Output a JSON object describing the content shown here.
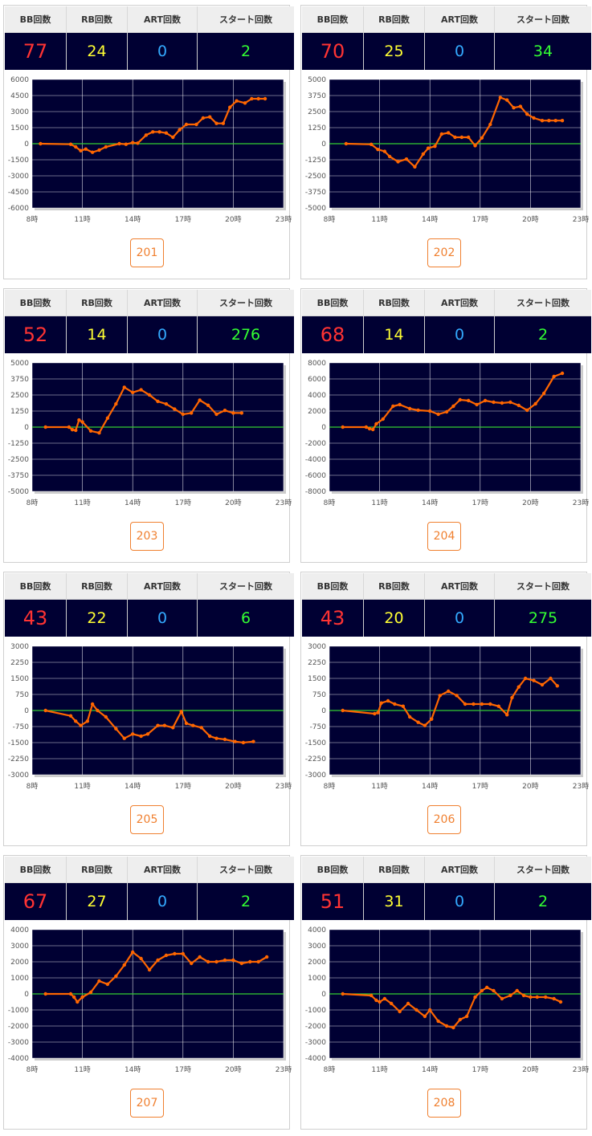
{
  "headers": {
    "bb": "BB回数",
    "rb": "RB回数",
    "art": "ART回数",
    "start": "スタート回数"
  },
  "colors": {
    "bb": "#ff3333",
    "rb": "#ffff33",
    "art": "#33aaff",
    "start": "#33ff33",
    "plot_bg": "#000033",
    "line": "#ff6600",
    "zero_line": "#33cc33",
    "button": "#f08030"
  },
  "machines": [
    {
      "id": "201",
      "bb": "77",
      "rb": "24",
      "art": "0",
      "start": "2"
    },
    {
      "id": "202",
      "bb": "70",
      "rb": "25",
      "art": "0",
      "start": "34"
    },
    {
      "id": "203",
      "bb": "52",
      "rb": "14",
      "art": "0",
      "start": "276"
    },
    {
      "id": "204",
      "bb": "68",
      "rb": "14",
      "art": "0",
      "start": "2"
    },
    {
      "id": "205",
      "bb": "43",
      "rb": "22",
      "art": "0",
      "start": "6"
    },
    {
      "id": "206",
      "bb": "43",
      "rb": "20",
      "art": "0",
      "start": "275"
    },
    {
      "id": "207",
      "bb": "67",
      "rb": "27",
      "art": "0",
      "start": "2"
    },
    {
      "id": "208",
      "bb": "51",
      "rb": "31",
      "art": "0",
      "start": "2"
    }
  ],
  "chart_data": [
    {
      "type": "line",
      "title": "",
      "series": [
        {
          "name": "",
          "x": [
            8.5,
            10.3,
            10.6,
            10.9,
            11.2,
            11.6,
            12,
            12.4,
            13.2,
            13.6,
            14,
            14.3,
            14.8,
            15.2,
            15.6,
            16,
            16.4,
            16.8,
            17.2,
            17.8,
            18.2,
            18.6,
            19,
            19.4,
            19.8,
            20.2,
            20.7,
            21.1,
            21.5,
            21.9
          ],
          "y": [
            0,
            -50,
            -300,
            -650,
            -500,
            -800,
            -600,
            -300,
            0,
            -50,
            100,
            50,
            800,
            1100,
            1100,
            1000,
            600,
            1300,
            1800,
            1800,
            2400,
            2500,
            1900,
            1900,
            3400,
            4000,
            3800,
            4200,
            4200,
            4200
          ]
        }
      ],
      "x_ticks": [
        "8時",
        "11時",
        "14時",
        "17時",
        "20時",
        "23時"
      ],
      "y_ticks": [
        "6000",
        "4500",
        "3000",
        "1500",
        "0",
        "-1500",
        "-3000",
        "-4500",
        "-6000"
      ],
      "xlim": [
        8,
        23
      ],
      "ylim": [
        -6000,
        6000
      ]
    },
    {
      "type": "line",
      "title": "",
      "series": [
        {
          "name": "",
          "x": [
            9,
            10.5,
            10.9,
            11.3,
            11.6,
            12.1,
            12.6,
            13.1,
            13.6,
            13.9,
            14.3,
            14.7,
            15.1,
            15.5,
            15.9,
            16.3,
            16.7,
            17.1,
            17.6,
            18.2,
            18.6,
            19,
            19.4,
            19.8,
            20.2,
            20.7,
            21.1,
            21.5,
            21.9
          ],
          "y": [
            0,
            -50,
            -450,
            -600,
            -1000,
            -1400,
            -1200,
            -1800,
            -800,
            -350,
            -200,
            750,
            850,
            500,
            500,
            500,
            -150,
            450,
            1500,
            3600,
            3400,
            2800,
            2900,
            2300,
            2000,
            1800,
            1800,
            1800,
            1800
          ]
        }
      ],
      "x_ticks": [
        "8時",
        "11時",
        "14時",
        "17時",
        "20時",
        "23時"
      ],
      "y_ticks": [
        "5000",
        "3750",
        "2500",
        "1250",
        "0",
        "-1250",
        "-2500",
        "-3750",
        "-5000"
      ],
      "xlim": [
        8,
        23
      ],
      "ylim": [
        -5000,
        5000
      ]
    },
    {
      "type": "line",
      "title": "",
      "series": [
        {
          "name": "",
          "x": [
            8.8,
            10.2,
            10.4,
            10.6,
            10.8,
            11,
            11.5,
            12,
            12.5,
            13,
            13.5,
            14,
            14.5,
            15,
            15.5,
            16,
            16.5,
            17,
            17.5,
            18,
            18.5,
            19,
            19.5,
            20,
            20.5
          ],
          "y": [
            0,
            0,
            -200,
            -250,
            550,
            400,
            -300,
            -450,
            700,
            1800,
            3100,
            2700,
            2900,
            2500,
            2000,
            1800,
            1400,
            1000,
            1100,
            2100,
            1700,
            1000,
            1300,
            1100,
            1100
          ]
        }
      ],
      "x_ticks": [
        "8時",
        "11時",
        "14時",
        "17時",
        "20時",
        "23時"
      ],
      "y_ticks": [
        "5000",
        "3750",
        "2500",
        "1250",
        "0",
        "-1250",
        "-2500",
        "-3750",
        "-5000"
      ],
      "xlim": [
        8,
        23
      ],
      "ylim": [
        -5000,
        5000
      ]
    },
    {
      "type": "line",
      "title": "",
      "series": [
        {
          "name": "",
          "x": [
            8.8,
            10.2,
            10.4,
            10.6,
            10.8,
            11.2,
            11.8,
            12.2,
            12.8,
            13.3,
            14,
            14.5,
            15,
            15.4,
            15.8,
            16.3,
            16.8,
            17.3,
            17.8,
            18.3,
            18.8,
            19.3,
            19.8,
            20.3,
            20.8,
            21.4,
            21.9
          ],
          "y": [
            0,
            0,
            -200,
            -300,
            400,
            1000,
            2600,
            2800,
            2300,
            2100,
            2000,
            1600,
            1900,
            2600,
            3400,
            3300,
            2800,
            3300,
            3100,
            3000,
            3100,
            2700,
            2100,
            2900,
            4200,
            6300,
            6700
          ]
        }
      ],
      "x_ticks": [
        "8時",
        "11時",
        "14時",
        "17時",
        "20時",
        "23時"
      ],
      "y_ticks": [
        "8000",
        "6000",
        "4000",
        "2000",
        "0",
        "-2000",
        "-4000",
        "-6000",
        "-8000"
      ],
      "xlim": [
        8,
        23
      ],
      "ylim": [
        -8000,
        8000
      ]
    },
    {
      "type": "line",
      "title": "",
      "series": [
        {
          "name": "",
          "x": [
            8.8,
            10.3,
            10.6,
            10.9,
            11.3,
            11.6,
            11.9,
            12.4,
            13,
            13.5,
            14,
            14.5,
            14.9,
            15.5,
            15.9,
            16.4,
            16.9,
            17.2,
            17.6,
            18.1,
            18.6,
            19,
            19.5,
            20.1,
            20.6,
            21.2
          ],
          "y": [
            0,
            -250,
            -500,
            -700,
            -500,
            300,
            0,
            -300,
            -850,
            -1300,
            -1100,
            -1200,
            -1100,
            -700,
            -700,
            -800,
            -50,
            -600,
            -700,
            -800,
            -1200,
            -1300,
            -1350,
            -1450,
            -1500,
            -1450
          ]
        }
      ],
      "x_ticks": [
        "8時",
        "11時",
        "14時",
        "17時",
        "20時",
        "23時"
      ],
      "y_ticks": [
        "3000",
        "2250",
        "1500",
        "750",
        "0",
        "-750",
        "-1500",
        "-2250",
        "-3000"
      ],
      "xlim": [
        8,
        23
      ],
      "ylim": [
        -3000,
        3000
      ]
    },
    {
      "type": "line",
      "title": "",
      "series": [
        {
          "name": "",
          "x": [
            8.8,
            10.7,
            10.9,
            11.1,
            11.5,
            11.9,
            12.4,
            12.8,
            13.3,
            13.7,
            14.1,
            14.6,
            15.1,
            15.6,
            16.1,
            16.6,
            17.1,
            17.6,
            18.1,
            18.6,
            18.9,
            19.3,
            19.7,
            20.2,
            20.7,
            21.2,
            21.6
          ],
          "y": [
            0,
            -150,
            -100,
            350,
            450,
            300,
            200,
            -300,
            -550,
            -700,
            -400,
            700,
            900,
            700,
            300,
            300,
            300,
            300,
            200,
            -200,
            600,
            1100,
            1500,
            1400,
            1200,
            1500,
            1150
          ]
        }
      ],
      "x_ticks": [
        "8時",
        "11時",
        "14時",
        "17時",
        "20時",
        "23時"
      ],
      "y_ticks": [
        "3000",
        "2250",
        "1500",
        "750",
        "0",
        "-750",
        "-1500",
        "-2250",
        "-3000"
      ],
      "xlim": [
        8,
        23
      ],
      "ylim": [
        -3000,
        3000
      ]
    },
    {
      "type": "line",
      "title": "",
      "series": [
        {
          "name": "",
          "x": [
            8.8,
            10.3,
            10.5,
            10.7,
            11,
            11.5,
            12,
            12.5,
            13,
            13.5,
            14,
            14.5,
            15,
            15.5,
            16,
            16.5,
            17,
            17.5,
            18,
            18.5,
            19,
            19.5,
            20,
            20.5,
            21,
            21.5,
            22
          ],
          "y": [
            0,
            0,
            -200,
            -500,
            -200,
            100,
            800,
            600,
            1100,
            1800,
            2600,
            2200,
            1500,
            2100,
            2400,
            2500,
            2500,
            1900,
            2300,
            2000,
            2000,
            2100,
            2100,
            1900,
            2000,
            2000,
            2300
          ]
        }
      ],
      "x_ticks": [
        "8時",
        "11時",
        "14時",
        "17時",
        "20時",
        "23時"
      ],
      "y_ticks": [
        "4000",
        "3000",
        "2000",
        "1000",
        "0",
        "-1000",
        "-2000",
        "-3000",
        "-4000"
      ],
      "xlim": [
        8,
        23
      ],
      "ylim": [
        -4000,
        4000
      ]
    },
    {
      "type": "line",
      "title": "",
      "series": [
        {
          "name": "",
          "x": [
            8.8,
            10.5,
            10.8,
            11,
            11.3,
            11.7,
            12.2,
            12.7,
            13.2,
            13.7,
            14,
            14.5,
            15,
            15.4,
            15.8,
            16.2,
            16.7,
            17.1,
            17.4,
            17.8,
            18.3,
            18.8,
            19.2,
            19.6,
            20,
            20.4,
            20.9,
            21.4,
            21.8
          ],
          "y": [
            0,
            -100,
            -400,
            -500,
            -300,
            -600,
            -1100,
            -600,
            -1000,
            -1400,
            -1000,
            -1700,
            -2000,
            -2100,
            -1600,
            -1400,
            -200,
            200,
            400,
            200,
            -300,
            -100,
            200,
            -100,
            -200,
            -200,
            -200,
            -300,
            -500
          ]
        }
      ],
      "x_ticks": [
        "8時",
        "11時",
        "14時",
        "17時",
        "20時",
        "23時"
      ],
      "y_ticks": [
        "4000",
        "3000",
        "2000",
        "1000",
        "0",
        "-1000",
        "-2000",
        "-3000",
        "-4000"
      ],
      "xlim": [
        8,
        23
      ],
      "ylim": [
        -4000,
        4000
      ]
    }
  ]
}
